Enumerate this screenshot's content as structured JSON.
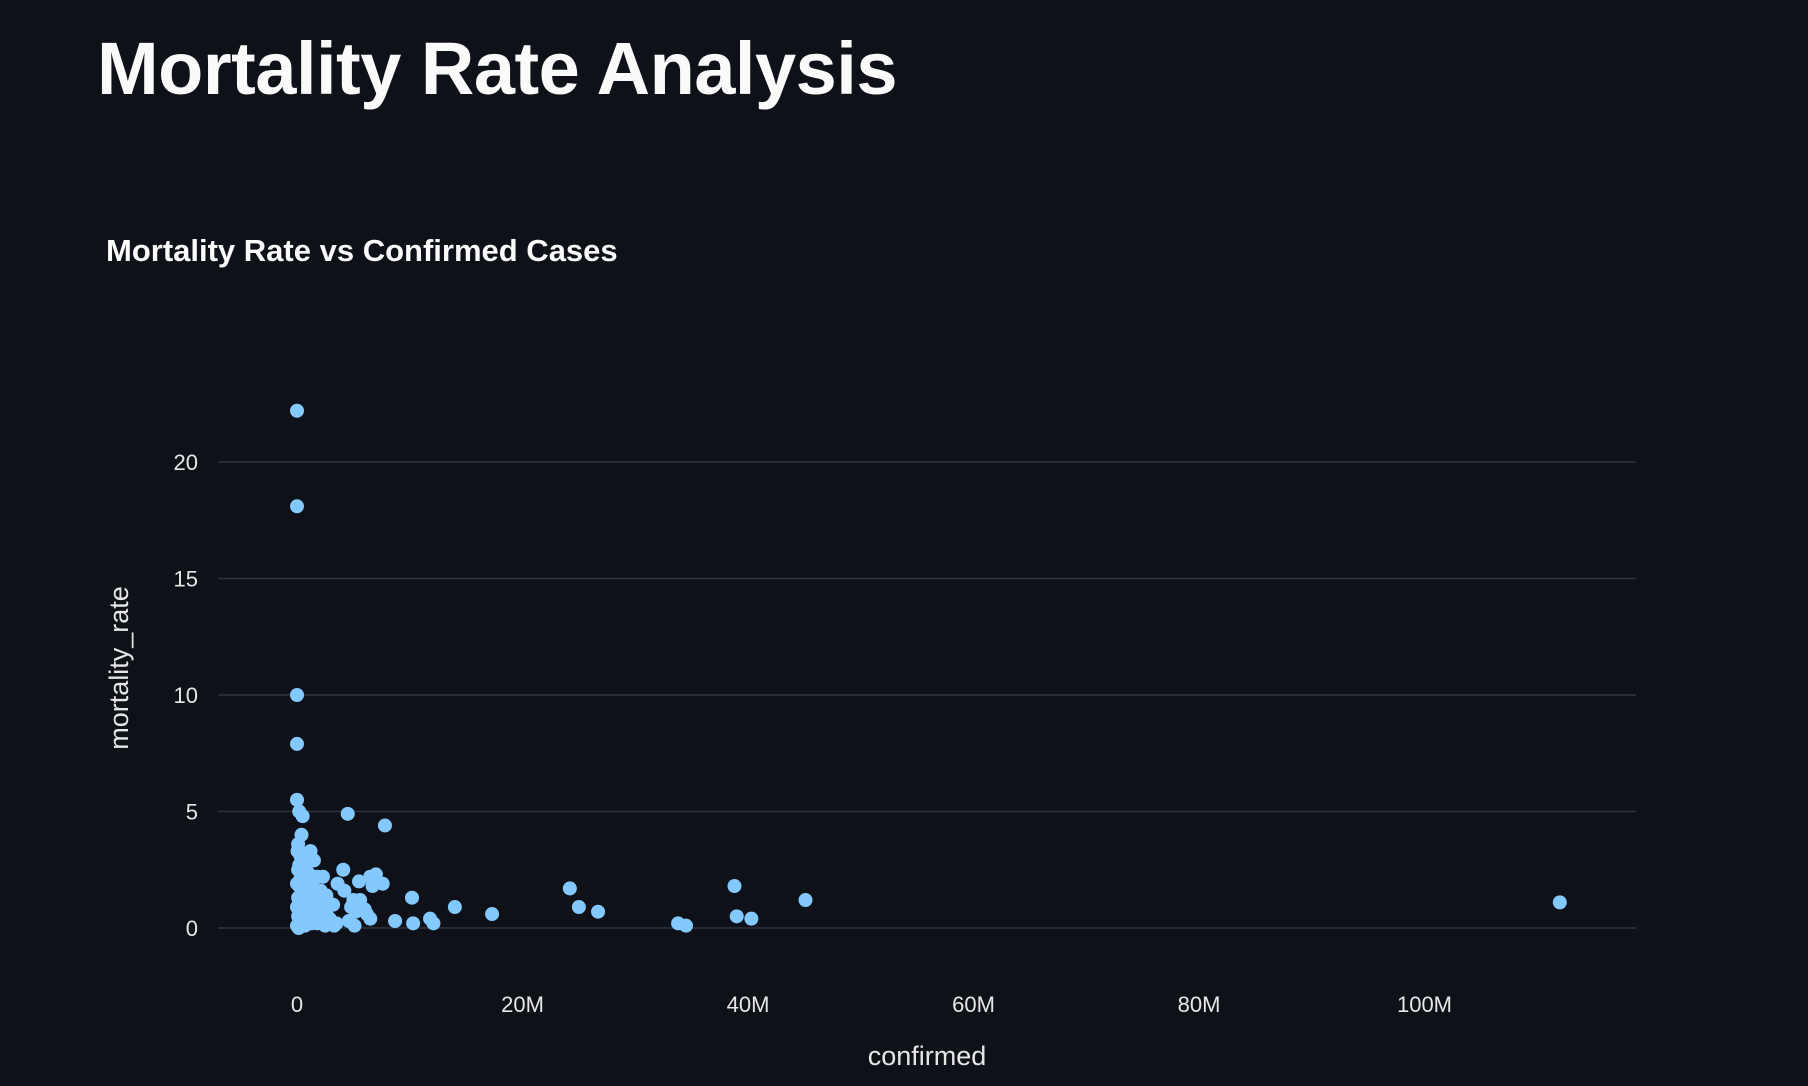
{
  "page": {
    "title": "Mortality Rate Analysis"
  },
  "chart_data": {
    "type": "scatter",
    "title": "Mortality Rate vs Confirmed Cases",
    "xlabel": "confirmed",
    "ylabel": "mortality_rate",
    "xlim": [
      -6000000,
      119000000
    ],
    "ylim": [
      -2.4,
      27.2
    ],
    "x_ticks": [
      0,
      20000000,
      40000000,
      60000000,
      80000000,
      100000000
    ],
    "x_tick_labels": [
      "0",
      "20M",
      "40M",
      "60M",
      "80M",
      "100M"
    ],
    "y_ticks": [
      0,
      5,
      10,
      15,
      20
    ],
    "y_tick_labels": [
      "0",
      "5",
      "10",
      "15",
      "20"
    ],
    "grid": "horizontal",
    "legend": "none",
    "marker_color": "#83c9ff",
    "background_color": "#0e1117",
    "points": [
      [
        0,
        22.2
      ],
      [
        0,
        18.1
      ],
      [
        0,
        10.0
      ],
      [
        0,
        7.9
      ],
      [
        0,
        5.5
      ],
      [
        200000,
        5.0
      ],
      [
        500000,
        4.8
      ],
      [
        400000,
        4.0
      ],
      [
        100000,
        3.6
      ],
      [
        50000,
        3.3
      ],
      [
        300000,
        3.1
      ],
      [
        600000,
        3.2
      ],
      [
        1000000,
        3.0
      ],
      [
        1200000,
        3.3
      ],
      [
        1500000,
        2.9
      ],
      [
        200000,
        2.7
      ],
      [
        800000,
        2.6
      ],
      [
        100000,
        2.5
      ],
      [
        500000,
        2.4
      ],
      [
        1100000,
        2.3
      ],
      [
        1800000,
        2.2
      ],
      [
        2300000,
        2.2
      ],
      [
        300000,
        2.1
      ],
      [
        700000,
        2.0
      ],
      [
        1400000,
        2.0
      ],
      [
        0,
        1.9
      ],
      [
        200000,
        1.8
      ],
      [
        600000,
        1.8
      ],
      [
        1000000,
        1.7
      ],
      [
        1600000,
        1.6
      ],
      [
        2100000,
        1.6
      ],
      [
        400000,
        1.5
      ],
      [
        900000,
        1.5
      ],
      [
        1300000,
        1.4
      ],
      [
        2600000,
        1.4
      ],
      [
        100000,
        1.3
      ],
      [
        500000,
        1.3
      ],
      [
        1700000,
        1.2
      ],
      [
        2000000,
        1.2
      ],
      [
        2800000,
        1.1
      ],
      [
        300000,
        1.1
      ],
      [
        700000,
        1.0
      ],
      [
        1200000,
        1.0
      ],
      [
        3200000,
        1.0
      ],
      [
        0,
        0.9
      ],
      [
        400000,
        0.9
      ],
      [
        900000,
        0.8
      ],
      [
        1500000,
        0.8
      ],
      [
        2400000,
        0.8
      ],
      [
        200000,
        0.7
      ],
      [
        600000,
        0.6
      ],
      [
        1100000,
        0.6
      ],
      [
        1900000,
        0.6
      ],
      [
        2700000,
        0.5
      ],
      [
        100000,
        0.5
      ],
      [
        500000,
        0.4
      ],
      [
        1000000,
        0.4
      ],
      [
        1600000,
        0.3
      ],
      [
        2200000,
        0.3
      ],
      [
        3000000,
        0.3
      ],
      [
        300000,
        0.2
      ],
      [
        800000,
        0.2
      ],
      [
        1300000,
        0.2
      ],
      [
        2500000,
        0.1
      ],
      [
        3300000,
        0.1
      ],
      [
        0,
        0.1
      ],
      [
        150000,
        0.0
      ],
      [
        700000,
        0.1
      ],
      [
        1800000,
        0.2
      ],
      [
        2900000,
        0.4
      ],
      [
        3500000,
        0.2
      ],
      [
        4500000,
        4.9
      ],
      [
        7800000,
        4.4
      ],
      [
        4100000,
        2.5
      ],
      [
        3600000,
        1.9
      ],
      [
        4200000,
        1.6
      ],
      [
        5500000,
        2.0
      ],
      [
        6500000,
        2.2
      ],
      [
        7000000,
        2.3
      ],
      [
        6700000,
        1.8
      ],
      [
        7600000,
        1.9
      ],
      [
        5000000,
        1.2
      ],
      [
        5600000,
        1.2
      ],
      [
        4800000,
        0.9
      ],
      [
        5200000,
        0.7
      ],
      [
        6200000,
        0.6
      ],
      [
        6500000,
        0.4
      ],
      [
        4600000,
        0.3
      ],
      [
        5100000,
        0.1
      ],
      [
        6000000,
        0.8
      ],
      [
        8700000,
        0.3
      ],
      [
        10200000,
        1.3
      ],
      [
        10300000,
        0.2
      ],
      [
        11800000,
        0.4
      ],
      [
        12100000,
        0.2
      ],
      [
        14000000,
        0.9
      ],
      [
        17300000,
        0.6
      ],
      [
        24200000,
        1.7
      ],
      [
        25000000,
        0.9
      ],
      [
        26700000,
        0.7
      ],
      [
        33800000,
        0.2
      ],
      [
        34500000,
        0.1
      ],
      [
        38800000,
        1.8
      ],
      [
        39000000,
        0.5
      ],
      [
        40300000,
        0.4
      ],
      [
        45100000,
        1.2
      ],
      [
        112000000,
        1.1
      ]
    ]
  }
}
